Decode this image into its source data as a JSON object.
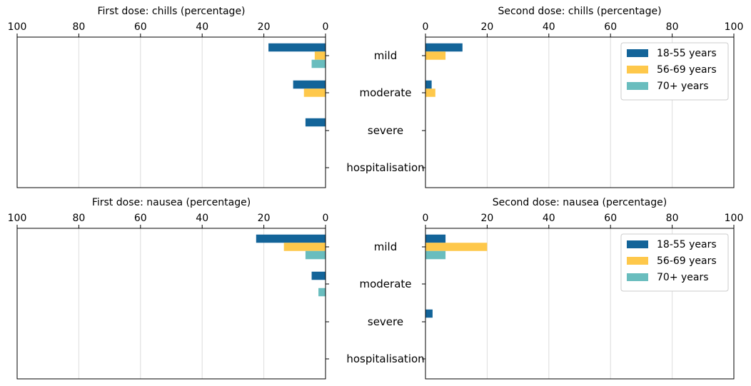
{
  "chart_data": {
    "type": "bar",
    "orientation": "horizontal",
    "categories": [
      "mild",
      "moderate",
      "severe",
      "hospitalisation"
    ],
    "colors": {
      "18-55 years": "#136499",
      "56-69 years": "#fec84b",
      "70+ years": "#69bdbe"
    },
    "grid": true,
    "legend_position": "upper right",
    "panels": [
      {
        "title": "First dose: chills (percentage)",
        "xlim": [
          100,
          0
        ],
        "inverted": true,
        "xticks": [
          "100",
          "80",
          "60",
          "40",
          "20",
          "0"
        ],
        "series": [
          {
            "name": "18-55 years",
            "values": [
              18.5,
              10.5,
              6.5,
              0
            ]
          },
          {
            "name": "56-69 years",
            "values": [
              3.5,
              7,
              0,
              0
            ]
          },
          {
            "name": "70+ years",
            "values": [
              4.5,
              0,
              0,
              0
            ]
          }
        ]
      },
      {
        "title": "Second dose: chills (percentage)",
        "xlim": [
          0,
          100
        ],
        "inverted": false,
        "legend": true,
        "xticks": [
          "0",
          "20",
          "40",
          "60",
          "80",
          "100"
        ],
        "series": [
          {
            "name": "18-55 years",
            "values": [
              12,
              2,
              0,
              0
            ]
          },
          {
            "name": "56-69 years",
            "values": [
              6.5,
              3.2,
              0,
              0
            ]
          },
          {
            "name": "70+ years",
            "values": [
              0,
              0,
              0,
              0
            ]
          }
        ]
      },
      {
        "title": "First dose: nausea (percentage)",
        "xlim": [
          100,
          0
        ],
        "inverted": true,
        "xticks": [
          "100",
          "80",
          "60",
          "40",
          "20",
          "0"
        ],
        "series": [
          {
            "name": "18-55 years",
            "values": [
              22.5,
              4.5,
              0,
              0
            ]
          },
          {
            "name": "56-69 years",
            "values": [
              13.5,
              0,
              0,
              0
            ]
          },
          {
            "name": "70+ years",
            "values": [
              6.5,
              2.3,
              0,
              0
            ]
          }
        ]
      },
      {
        "title": "Second dose: nausea (percentage)",
        "xlim": [
          0,
          100
        ],
        "inverted": false,
        "legend": true,
        "xticks": [
          "0",
          "20",
          "40",
          "60",
          "80",
          "100"
        ],
        "series": [
          {
            "name": "18-55 years",
            "values": [
              6.5,
              0,
              2.3,
              0
            ]
          },
          {
            "name": "56-69 years",
            "values": [
              20,
              0,
              0,
              0
            ]
          },
          {
            "name": "70+ years",
            "values": [
              6.5,
              0,
              0,
              0
            ]
          }
        ]
      }
    ]
  }
}
